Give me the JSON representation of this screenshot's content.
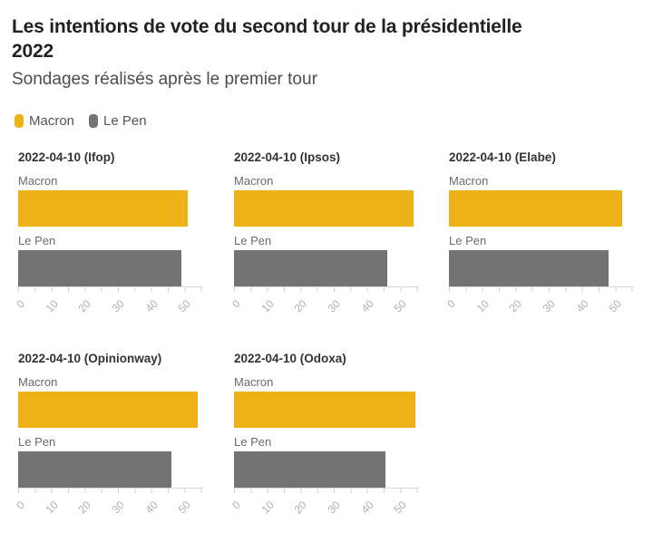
{
  "header": {
    "title_line1": "Les intentions de vote du second tour de la présidentielle",
    "title_line2": "2022",
    "subtitle": "Sondages réalisés après le premier tour"
  },
  "legend": {
    "items": [
      {
        "label": "Macron",
        "color": "#efb118"
      },
      {
        "label": "Le Pen",
        "color": "#737373"
      }
    ]
  },
  "axis": {
    "tick_labels": [
      "0",
      "10",
      "20",
      "30",
      "40",
      "50"
    ],
    "tick_values": [
      0,
      10,
      20,
      30,
      40,
      50
    ],
    "xlim": [
      0,
      55.5
    ]
  },
  "chart_data": [
    {
      "type": "bar",
      "orientation": "horizontal",
      "title": "2022-04-10 (Ifop)",
      "categories": [
        "Macron",
        "Le Pen"
      ],
      "values": [
        51,
        49
      ],
      "colors": [
        "#efb118",
        "#737373"
      ],
      "xlim": [
        0,
        55.5
      ],
      "xticks": [
        0,
        10,
        20,
        30,
        40,
        50
      ]
    },
    {
      "type": "bar",
      "orientation": "horizontal",
      "title": "2022-04-10 (Ipsos)",
      "categories": [
        "Macron",
        "Le Pen"
      ],
      "values": [
        54,
        46
      ],
      "colors": [
        "#efb118",
        "#737373"
      ],
      "xlim": [
        0,
        55.5
      ],
      "xticks": [
        0,
        10,
        20,
        30,
        40,
        50
      ]
    },
    {
      "type": "bar",
      "orientation": "horizontal",
      "title": "2022-04-10 (Elabe)",
      "categories": [
        "Macron",
        "Le Pen"
      ],
      "values": [
        52,
        48
      ],
      "colors": [
        "#efb118",
        "#737373"
      ],
      "xlim": [
        0,
        55.5
      ],
      "xticks": [
        0,
        10,
        20,
        30,
        40,
        50
      ]
    },
    {
      "type": "bar",
      "orientation": "horizontal",
      "title": "2022-04-10 (Opinionway)",
      "categories": [
        "Macron",
        "Le Pen"
      ],
      "values": [
        54,
        46
      ],
      "colors": [
        "#efb118",
        "#737373"
      ],
      "xlim": [
        0,
        55.5
      ],
      "xticks": [
        0,
        10,
        20,
        30,
        40,
        50
      ]
    },
    {
      "type": "bar",
      "orientation": "horizontal",
      "title": "2022-04-10 (Odoxa)",
      "categories": [
        "Macron",
        "Le Pen"
      ],
      "values": [
        54.5,
        45.5
      ],
      "colors": [
        "#efb118",
        "#737373"
      ],
      "xlim": [
        0,
        55.5
      ],
      "xticks": [
        0,
        10,
        20,
        30,
        40,
        50
      ]
    }
  ]
}
